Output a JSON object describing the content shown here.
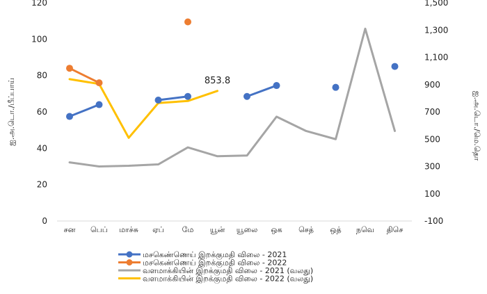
{
  "chart_data": {
    "type": "line",
    "categories": [
      "சன",
      "பெப்",
      "மாச்சு",
      "ஏப்",
      "மே",
      "யூன்",
      "யூலை",
      "ஒக",
      "செத்",
      "ஒத்",
      "நவெ",
      "திசெ"
    ],
    "y_left": {
      "label": "ஐ.அ.டொ./பீப்பாய்",
      "ticks": [
        "0",
        "20",
        "40",
        "60",
        "80",
        "100",
        "120"
      ],
      "range": [
        0,
        120
      ]
    },
    "y_right": {
      "label": "ஐ.அ.டொ./மெ.தொ",
      "ticks": [
        "-100",
        "100",
        "300",
        "500",
        "700",
        "900",
        "1,100",
        "1,300",
        "1,500"
      ],
      "range": [
        -100,
        1500
      ]
    },
    "series": [
      {
        "name": "மசகெண்ணெய் இறக்குமதி விலை - 2021",
        "axis": "left",
        "color": "#4472C4",
        "values": [
          57.5,
          64,
          null,
          66.5,
          68.5,
          null,
          68.5,
          74.5,
          null,
          73.5,
          null,
          85
        ]
      },
      {
        "name": "மசகெண்ணெய் இறக்குமதி விலை - 2022",
        "axis": "left",
        "color": "#ED7D31",
        "values": [
          84,
          76,
          null,
          null,
          109.5,
          null,
          null,
          null,
          null,
          null,
          null,
          null
        ]
      },
      {
        "name": "வளமாக்கியின் இறக்குமதி விலை - 2021 (வலது)",
        "axis": "right",
        "color": "#A5A5A5",
        "values": [
          330,
          300,
          305,
          315,
          440,
          375,
          380,
          665,
          560,
          500,
          1310,
          560
        ]
      },
      {
        "name": "வளமாக்கியின் இறக்குமதி விலை - 2022 (வலது)",
        "axis": "right",
        "color": "#FFC000",
        "values": [
          940,
          905,
          510,
          765,
          780,
          853.8,
          null,
          null,
          null,
          null,
          null,
          null
        ]
      }
    ],
    "data_labels": [
      {
        "series": 3,
        "index": 5,
        "text": "853.8"
      }
    ],
    "grid": false,
    "legend_position": "bottom"
  }
}
